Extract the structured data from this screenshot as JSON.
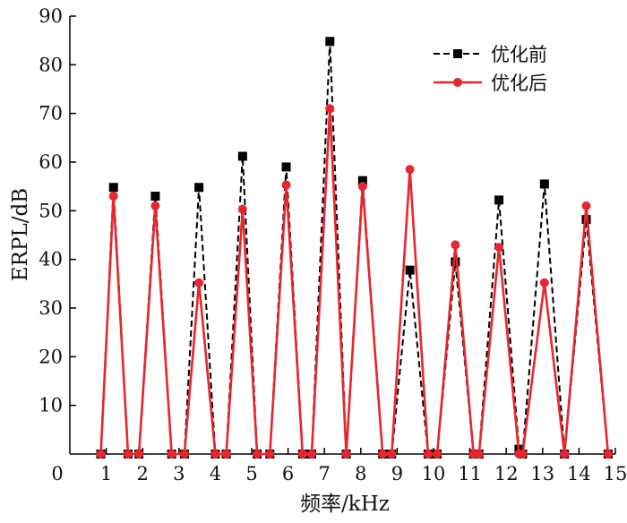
{
  "chart_data": {
    "type": "line",
    "xlabel": "频率/kHz",
    "ylabel": "ERPL/dB",
    "xlim": [
      0,
      15
    ],
    "ylim": [
      0,
      90
    ],
    "xticks": [
      0,
      1,
      2,
      3,
      4,
      5,
      6,
      7,
      8,
      9,
      10,
      11,
      12,
      13,
      14,
      15
    ],
    "yticks": [
      10,
      20,
      30,
      40,
      50,
      60,
      70,
      80,
      90
    ],
    "grid": false,
    "legend_position": "top-right",
    "series": [
      {
        "name": "优化前",
        "color": "#000000",
        "line_style": "dashed",
        "marker": "square",
        "points": [
          [
            0.85,
            0
          ],
          [
            1.2,
            54.8
          ],
          [
            1.6,
            0
          ],
          [
            1.9,
            0
          ],
          [
            2.35,
            53
          ],
          [
            2.8,
            0
          ],
          [
            3.15,
            0
          ],
          [
            3.55,
            54.8
          ],
          [
            4.0,
            0
          ],
          [
            4.3,
            0
          ],
          [
            4.75,
            61.2
          ],
          [
            5.15,
            0
          ],
          [
            5.5,
            0
          ],
          [
            5.95,
            59
          ],
          [
            6.4,
            0
          ],
          [
            6.65,
            0
          ],
          [
            7.15,
            84.8
          ],
          [
            7.6,
            0
          ],
          [
            8.05,
            56.2
          ],
          [
            8.6,
            0
          ],
          [
            8.85,
            0
          ],
          [
            9.35,
            37.8
          ],
          [
            9.85,
            0
          ],
          [
            10.1,
            0
          ],
          [
            10.6,
            39.5
          ],
          [
            11.1,
            0
          ],
          [
            11.25,
            0
          ],
          [
            11.8,
            52.2
          ],
          [
            12.35,
            1
          ],
          [
            12.45,
            0
          ],
          [
            13.05,
            55.5
          ],
          [
            13.6,
            0
          ],
          [
            14.2,
            48.2
          ],
          [
            14.8,
            0
          ]
        ]
      },
      {
        "name": "优化后",
        "color": "#e8262e",
        "line_style": "solid",
        "marker": "circle",
        "points": [
          [
            0.85,
            0
          ],
          [
            1.2,
            53
          ],
          [
            1.6,
            0
          ],
          [
            1.9,
            0
          ],
          [
            2.35,
            51
          ],
          [
            2.8,
            0
          ],
          [
            3.15,
            0
          ],
          [
            3.55,
            35.2
          ],
          [
            4.0,
            0
          ],
          [
            4.3,
            0
          ],
          [
            4.75,
            50.3
          ],
          [
            5.15,
            0
          ],
          [
            5.5,
            0
          ],
          [
            5.95,
            55.3
          ],
          [
            6.4,
            0
          ],
          [
            6.65,
            0
          ],
          [
            7.15,
            71
          ],
          [
            7.6,
            0
          ],
          [
            8.05,
            55
          ],
          [
            8.6,
            0
          ],
          [
            8.85,
            0
          ],
          [
            9.35,
            58.5
          ],
          [
            9.85,
            0
          ],
          [
            10.1,
            0
          ],
          [
            10.6,
            43
          ],
          [
            11.1,
            0
          ],
          [
            11.25,
            0
          ],
          [
            11.8,
            42.5
          ],
          [
            12.35,
            0
          ],
          [
            12.45,
            0
          ],
          [
            13.05,
            35.2
          ],
          [
            13.6,
            0
          ],
          [
            14.2,
            51
          ],
          [
            14.8,
            0
          ]
        ]
      }
    ]
  }
}
